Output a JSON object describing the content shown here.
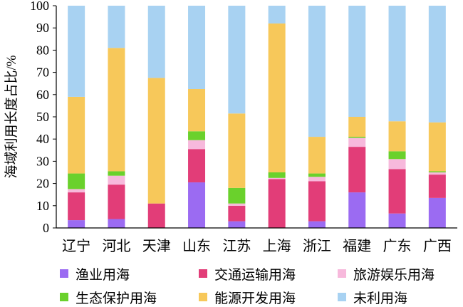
{
  "chart_data": {
    "type": "bar",
    "stacked": true,
    "title": "",
    "xlabel": "",
    "ylabel": "海域利用长度占比/%",
    "ylim": [
      0,
      100
    ],
    "yticks": [
      0,
      10,
      20,
      30,
      40,
      50,
      60,
      70,
      80,
      90,
      100
    ],
    "grid": false,
    "legend_position": "bottom",
    "categories": [
      "辽宁",
      "河北",
      "天津",
      "山东",
      "江苏",
      "上海",
      "浙江",
      "福建",
      "广东",
      "广西"
    ],
    "series": [
      {
        "name": "渔业用海",
        "color": "#9b6bf2",
        "values": [
          3.5,
          4,
          0,
          20.5,
          3,
          0,
          3,
          16,
          6.5,
          13.5
        ]
      },
      {
        "name": "交通运输用海",
        "color": "#e23d78",
        "values": [
          12.5,
          15.5,
          11,
          15,
          7,
          22,
          18,
          20.5,
          20,
          10.5
        ]
      },
      {
        "name": "旅游娱乐用海",
        "color": "#f7b9dc",
        "values": [
          1.5,
          4,
          0,
          4,
          1,
          0.5,
          2,
          4,
          4.5,
          1
        ]
      },
      {
        "name": "生态保护用海",
        "color": "#6ad12c",
        "values": [
          7,
          2,
          0,
          4,
          7,
          2.5,
          1.5,
          0.5,
          3.5,
          0.5
        ]
      },
      {
        "name": "能源开发用海",
        "color": "#f7c85a",
        "values": [
          34.5,
          55.5,
          56.5,
          19,
          33.5,
          67,
          16.5,
          9,
          13.5,
          22
        ]
      },
      {
        "name": "未利用海",
        "color": "#a8d2f2",
        "values": [
          41,
          19,
          32.5,
          37.5,
          48.5,
          8,
          59,
          50,
          52,
          52.5
        ]
      }
    ]
  }
}
